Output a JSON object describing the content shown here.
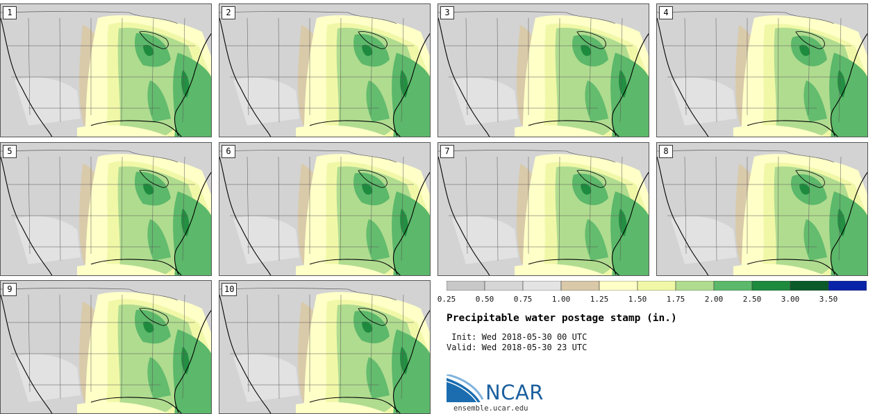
{
  "panels": [
    "1",
    "2",
    "3",
    "4",
    "5",
    "6",
    "7",
    "8",
    "9",
    "10"
  ],
  "colorbar": {
    "labels": [
      "0.25",
      "0.50",
      "0.75",
      "1.00",
      "1.25",
      "1.50",
      "1.75",
      "2.00",
      "2.50",
      "3.00",
      "3.50"
    ],
    "colors": [
      "#c8c8c8",
      "#d6d6d6",
      "#e4e4e4",
      "#d9c9a8",
      "#ffffc8",
      "#f0f8a8",
      "#b0dc90",
      "#5cb86a",
      "#1e8a3e",
      "#0a5a2a",
      "#0a24a8"
    ]
  },
  "title": "Precipitable water postage stamp (in.)",
  "init_line": " Init: Wed 2018-05-30 00 UTC",
  "valid_line": "Valid: Wed 2018-05-30 23 UTC",
  "logo_text": "NCAR",
  "url": "ensemble.ucar.edu"
}
